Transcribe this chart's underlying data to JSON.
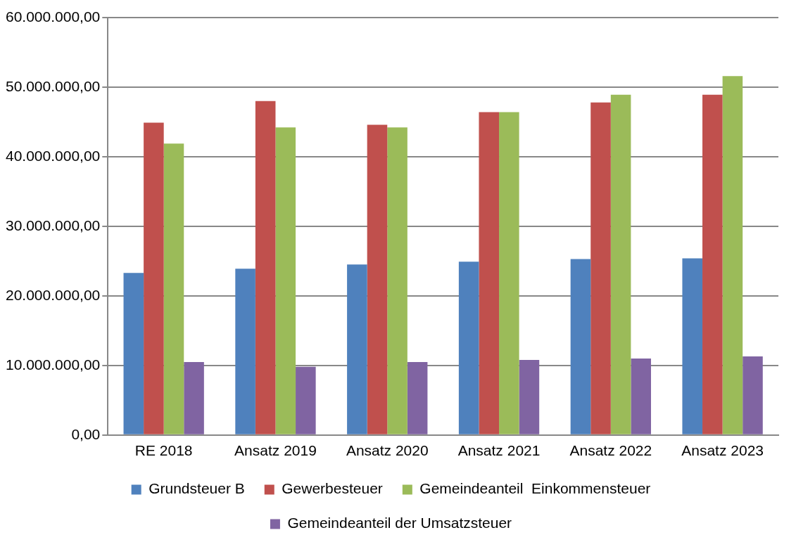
{
  "chart_data": {
    "type": "bar",
    "categories": [
      "RE 2018",
      "Ansatz 2019",
      "Ansatz 2020",
      "Ansatz 2021",
      "Ansatz 2022",
      "Ansatz 2023"
    ],
    "series": [
      {
        "name": "Grundsteuer B",
        "color": "#4f81bd",
        "values": [
          23300000,
          23900000,
          24500000,
          24900000,
          25300000,
          25400000
        ]
      },
      {
        "name": "Gewerbesteuer",
        "color": "#c0504d",
        "values": [
          44900000,
          48000000,
          44600000,
          46400000,
          47800000,
          48900000
        ]
      },
      {
        "name": "Gemeindeanteil  Einkommensteuer",
        "color": "#9bbb59",
        "values": [
          41900000,
          44200000,
          44200000,
          46400000,
          48900000,
          51600000
        ]
      },
      {
        "name": "Gemeindeanteil der Umsatzsteuer",
        "color": "#8064a2",
        "values": [
          10500000,
          9800000,
          10500000,
          10800000,
          11000000,
          11300000
        ]
      }
    ],
    "ylim": [
      0,
      60000000
    ],
    "yticks": [
      {
        "value": 0,
        "label": "0,00"
      },
      {
        "value": 10000000,
        "label": "10.000.000,00"
      },
      {
        "value": 20000000,
        "label": "20.000.000,00"
      },
      {
        "value": 30000000,
        "label": "30.000.000,00"
      },
      {
        "value": 40000000,
        "label": "40.000.000,00"
      },
      {
        "value": 50000000,
        "label": "50.000.000,00"
      },
      {
        "value": 60000000,
        "label": "60.000.000,00"
      }
    ],
    "grid": "y",
    "legend": "bottom"
  }
}
